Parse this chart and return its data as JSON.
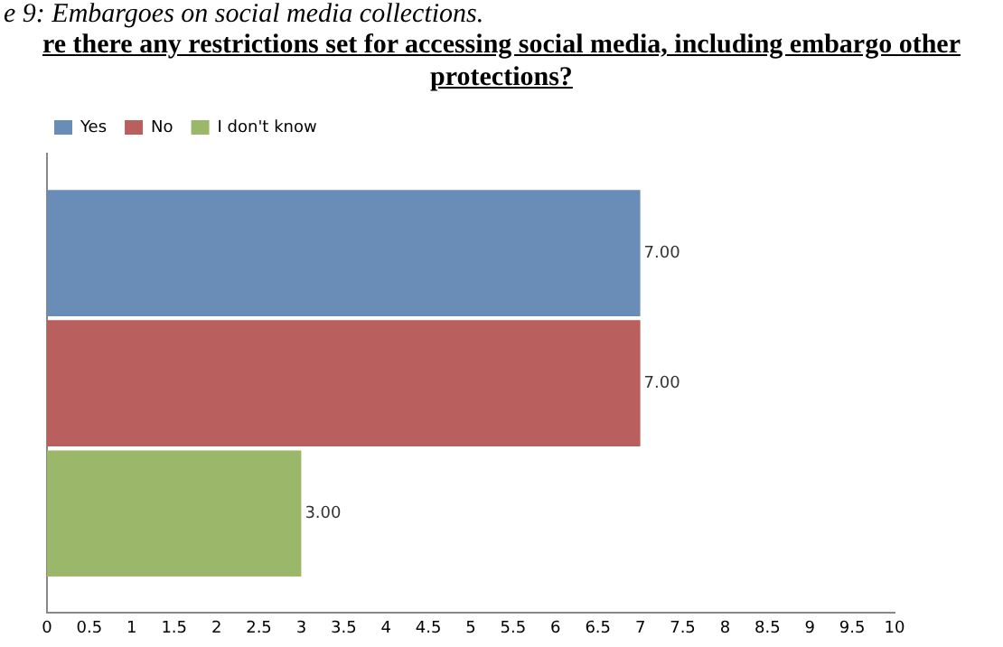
{
  "chart_data": {
    "type": "bar",
    "orientation": "horizontal",
    "title": "re there any restrictions set for accessing social media, including embargo other protections?",
    "annotations": [
      "e 9: Embargoes on social media collections."
    ],
    "categories": [
      null
    ],
    "series": [
      {
        "name": "Yes",
        "color": "#6a8db8",
        "values": [
          7
        ],
        "value_labels": [
          "7.00"
        ]
      },
      {
        "name": "No",
        "color": "#b95f5d",
        "values": [
          7
        ],
        "value_labels": [
          "7.00"
        ]
      },
      {
        "name": "I don't know",
        "color": "#9bb86a",
        "values": [
          3
        ],
        "value_labels": [
          "3.00"
        ]
      }
    ],
    "xlim": [
      0,
      10
    ],
    "xticks": [
      0,
      0.5,
      1,
      1.5,
      2,
      2.5,
      3,
      3.5,
      4,
      4.5,
      5,
      5.5,
      6,
      6.5,
      7,
      7.5,
      8,
      8.5,
      9,
      9.5,
      10
    ],
    "grid": false,
    "legend": "top left"
  }
}
